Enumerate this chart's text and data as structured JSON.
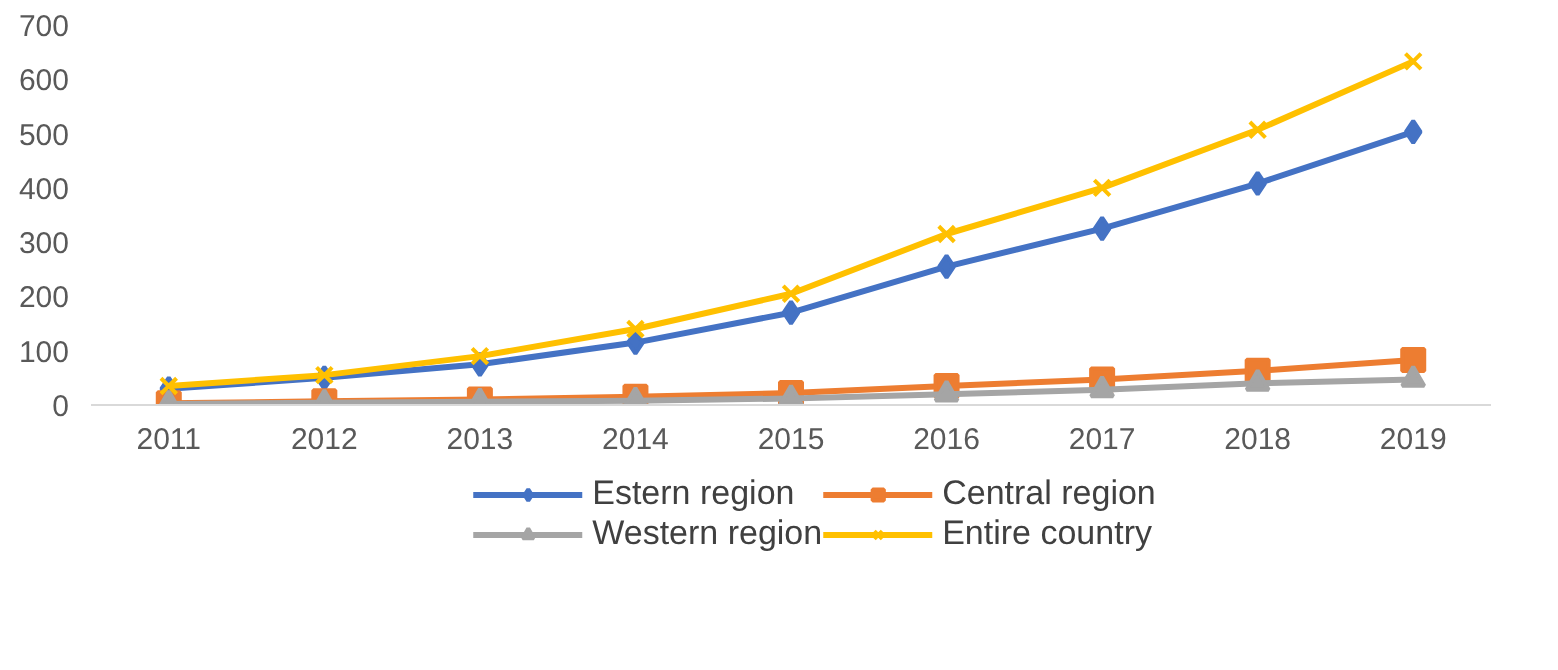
{
  "chart_data": {
    "type": "line",
    "categories": [
      "2011",
      "2012",
      "2013",
      "2014",
      "2015",
      "2016",
      "2017",
      "2018",
      "2019"
    ],
    "series": [
      {
        "name": "Estern region",
        "color": "#4472c4",
        "marker": "diamond",
        "values": [
          30,
          50,
          75,
          115,
          170,
          255,
          325,
          408,
          503
        ]
      },
      {
        "name": "Central region",
        "color": "#ed7d31",
        "marker": "square",
        "values": [
          3,
          7,
          10,
          15,
          22,
          35,
          47,
          63,
          83
        ]
      },
      {
        "name": "Western region",
        "color": "#a5a5a5",
        "marker": "triangle",
        "values": [
          2,
          4,
          6,
          8,
          12,
          20,
          28,
          40,
          47
        ]
      },
      {
        "name": "Entire country",
        "color": "#ffc000",
        "marker": "cross",
        "values": [
          35,
          55,
          90,
          140,
          205,
          315,
          400,
          507,
          633
        ]
      }
    ],
    "ylim": [
      0,
      700
    ],
    "yticks": [
      0,
      100,
      200,
      300,
      400,
      500,
      600,
      700
    ],
    "grid": false,
    "legend": "bottom",
    "line_style": "solid"
  }
}
